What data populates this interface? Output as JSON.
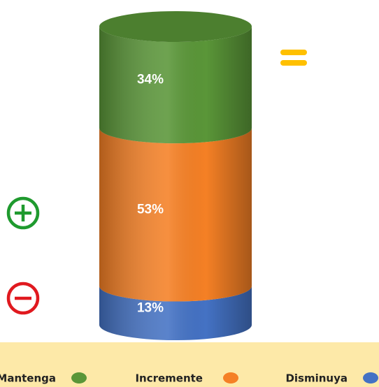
{
  "chart_data": {
    "type": "stacked-cylinder",
    "series": [
      {
        "name": "Disminuya",
        "color": "#4472c4",
        "values": [
          13
        ],
        "value_labels": [
          "13%"
        ]
      },
      {
        "name": "Incremente",
        "color": "#f58025",
        "values": [
          53
        ],
        "value_labels": [
          "53%"
        ]
      },
      {
        "name": "Mantenga",
        "color": "#5a9638",
        "values": [
          34
        ],
        "value_labels": [
          "34%"
        ]
      }
    ],
    "ylim": [
      0,
      100
    ],
    "legend": "bottom"
  }
}
